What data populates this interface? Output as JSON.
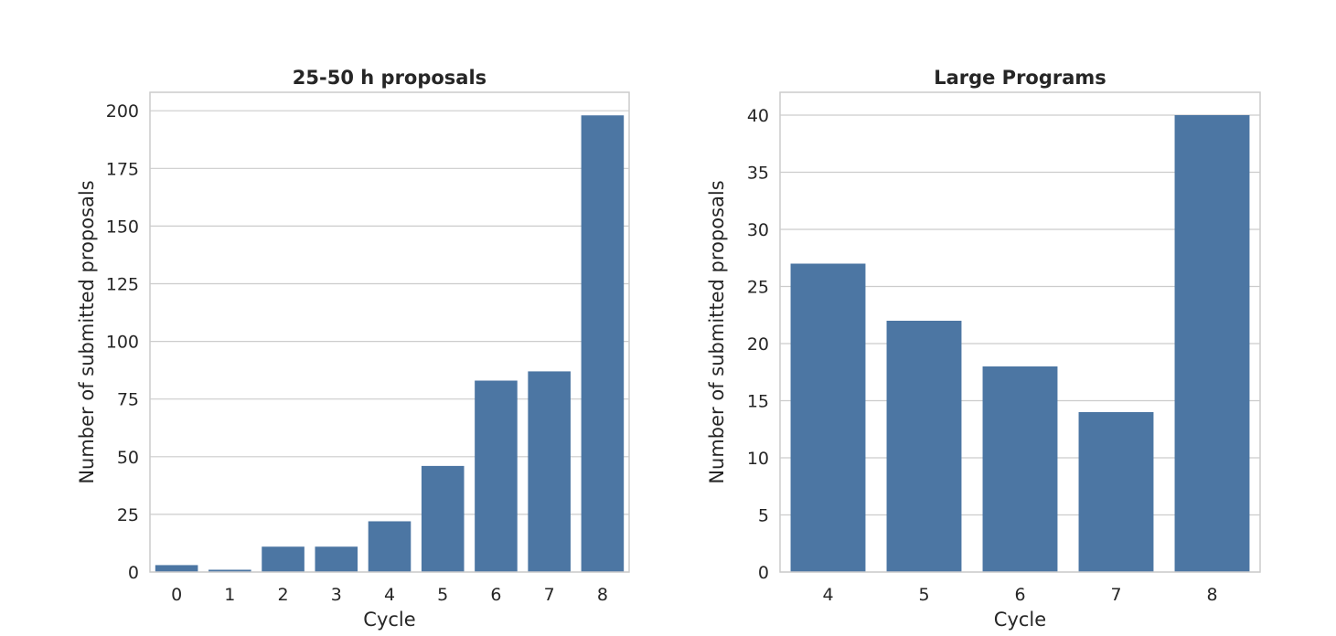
{
  "chart_data": [
    {
      "type": "bar",
      "title": "25-50 h proposals",
      "xlabel": "Cycle",
      "ylabel": "Number of submitted proposals",
      "categories": [
        "0",
        "1",
        "2",
        "3",
        "4",
        "5",
        "6",
        "7",
        "8"
      ],
      "values": [
        3,
        1,
        11,
        11,
        22,
        46,
        83,
        87,
        198
      ],
      "ylim": [
        0,
        208
      ],
      "yticks": [
        0,
        25,
        50,
        75,
        100,
        125,
        150,
        175,
        200
      ],
      "grid": true,
      "color": "#4c76a3"
    },
    {
      "type": "bar",
      "title": "Large Programs",
      "xlabel": "Cycle",
      "ylabel": "Number of submitted proposals",
      "categories": [
        "4",
        "5",
        "6",
        "7",
        "8"
      ],
      "values": [
        27,
        22,
        18,
        14,
        40
      ],
      "ylim": [
        0,
        42
      ],
      "yticks": [
        0,
        5,
        10,
        15,
        20,
        25,
        30,
        35,
        40
      ],
      "grid": true,
      "color": "#4c76a3"
    }
  ]
}
